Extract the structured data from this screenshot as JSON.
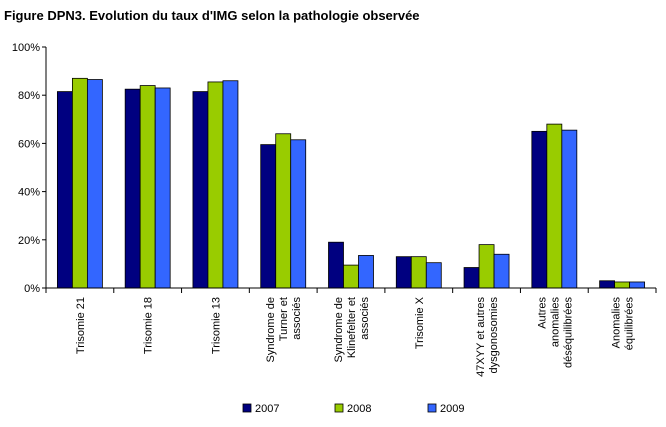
{
  "chart_data": {
    "type": "bar",
    "title": "Figure DPN3. Evolution du taux d'IMG selon la pathologie observée",
    "xlabel": "",
    "ylabel": "",
    "ylim": [
      0,
      100
    ],
    "yticks": [
      "0%",
      "20%",
      "40%",
      "60%",
      "80%",
      "100%"
    ],
    "categories": [
      [
        "Trisomie 21"
      ],
      [
        "Trisomie 18"
      ],
      [
        "Trisomie 13"
      ],
      [
        "Syndrome de",
        "Turner et",
        "associés"
      ],
      [
        "Syndrome de",
        "Klinefelter et",
        "associés"
      ],
      [
        "Trisomie X"
      ],
      [
        "47XYY et autres",
        "dysgonosomies"
      ],
      [
        "Autres",
        "anomalies",
        "déséquilibrées"
      ],
      [
        "Anomalies",
        "équilibrées"
      ]
    ],
    "series": [
      {
        "name": "2007",
        "color": "#000080",
        "values": [
          81.5,
          82.5,
          81.5,
          59.5,
          19,
          13,
          8.5,
          65,
          3
        ]
      },
      {
        "name": "2008",
        "color": "#99cc00",
        "values": [
          87,
          84,
          85.5,
          64,
          9.5,
          13,
          18,
          68,
          2.5
        ]
      },
      {
        "name": "2009",
        "color": "#3366ff",
        "values": [
          86.5,
          83,
          86,
          61.5,
          13.5,
          10.5,
          14,
          65.5,
          2.5
        ]
      }
    ],
    "grid": false,
    "legend": "bottom"
  }
}
